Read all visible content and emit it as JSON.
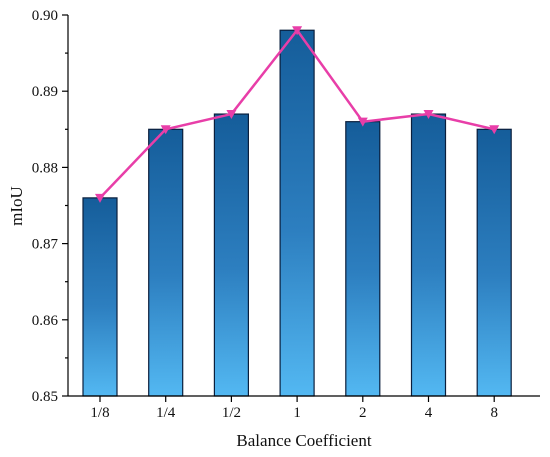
{
  "chart_data": {
    "type": "bar",
    "xlabel": "Balance Coefficient",
    "ylabel": "mIoU",
    "categories": [
      "1/8",
      "1/4",
      "1/2",
      "1",
      "2",
      "4",
      "8"
    ],
    "values": [
      0.876,
      0.885,
      0.887,
      0.898,
      0.886,
      0.887,
      0.885
    ],
    "ylim": [
      0.85,
      0.9
    ],
    "yticks": [
      "0.85",
      "0.86",
      "0.87",
      "0.88",
      "0.89",
      "0.90"
    ],
    "overlay_line": {
      "values": [
        0.876,
        0.885,
        0.887,
        0.898,
        0.886,
        0.887,
        0.885
      ],
      "marker": "down-triangle"
    },
    "grid": false,
    "colors": {
      "bar_top": "#155d9a",
      "bar_mid": "#2d7fc0",
      "bar_bottom": "#53b8f2",
      "bar_edge": "#0a1f3d",
      "line": "#e83ea8"
    }
  }
}
